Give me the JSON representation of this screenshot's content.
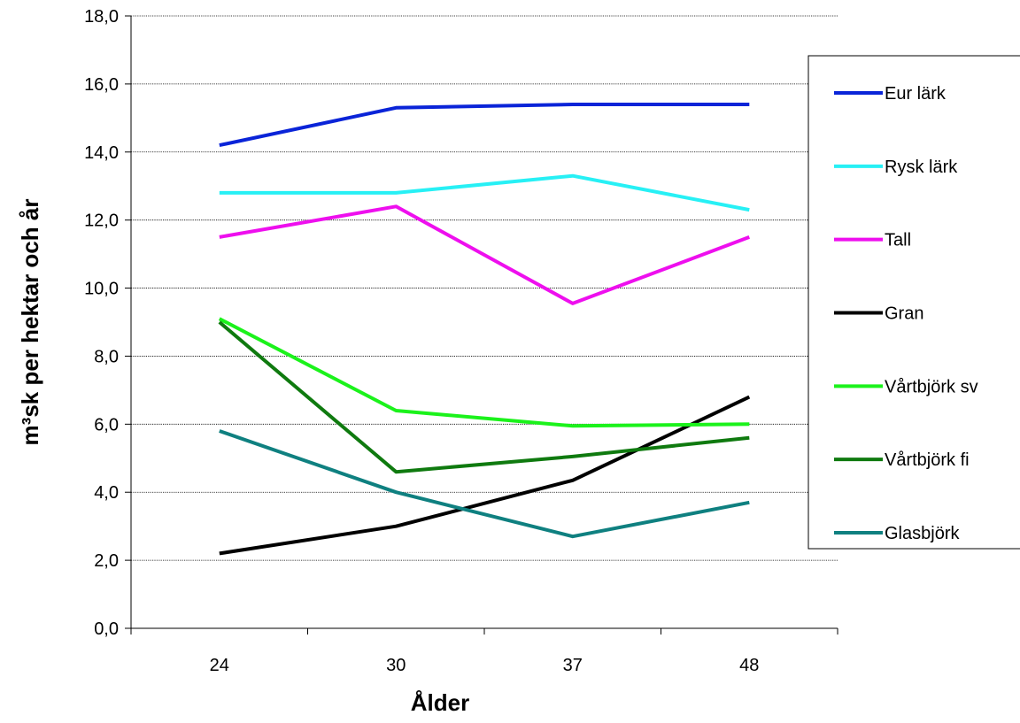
{
  "chart_data": {
    "type": "line",
    "title": "",
    "xlabel": "Ålder",
    "ylabel": "m³sk per hektar och år",
    "categories": [
      "24",
      "30",
      "37",
      "48"
    ],
    "ylim": [
      0,
      18
    ],
    "yticks": [
      "0,0",
      "2,0",
      "4,0",
      "6,0",
      "8,0",
      "10,0",
      "12,0",
      "14,0",
      "16,0",
      "18,0"
    ],
    "grid": true,
    "legend_position": "right",
    "series": [
      {
        "name": "Eur lärk",
        "color": "#0a24d8",
        "values": [
          14.2,
          15.3,
          15.4,
          15.4
        ]
      },
      {
        "name": "Rysk lärk",
        "color": "#27f0f5",
        "values": [
          12.8,
          12.8,
          13.3,
          12.3
        ]
      },
      {
        "name": "Tall",
        "color": "#ee0fee",
        "values": [
          11.5,
          12.4,
          9.55,
          11.5
        ]
      },
      {
        "name": "Gran",
        "color": "#000000",
        "values": [
          2.2,
          3.0,
          4.35,
          6.8
        ]
      },
      {
        "name": "Vårtbjörk sv",
        "color": "#1bf21b",
        "values": [
          9.1,
          6.4,
          5.95,
          6.0
        ]
      },
      {
        "name": "Vårtbjörk fi",
        "color": "#0f7a0f",
        "values": [
          9.0,
          4.6,
          5.05,
          5.6
        ]
      },
      {
        "name": "Glasbjörk",
        "color": "#0f8080",
        "values": [
          5.8,
          4.0,
          2.7,
          3.7
        ]
      }
    ]
  }
}
